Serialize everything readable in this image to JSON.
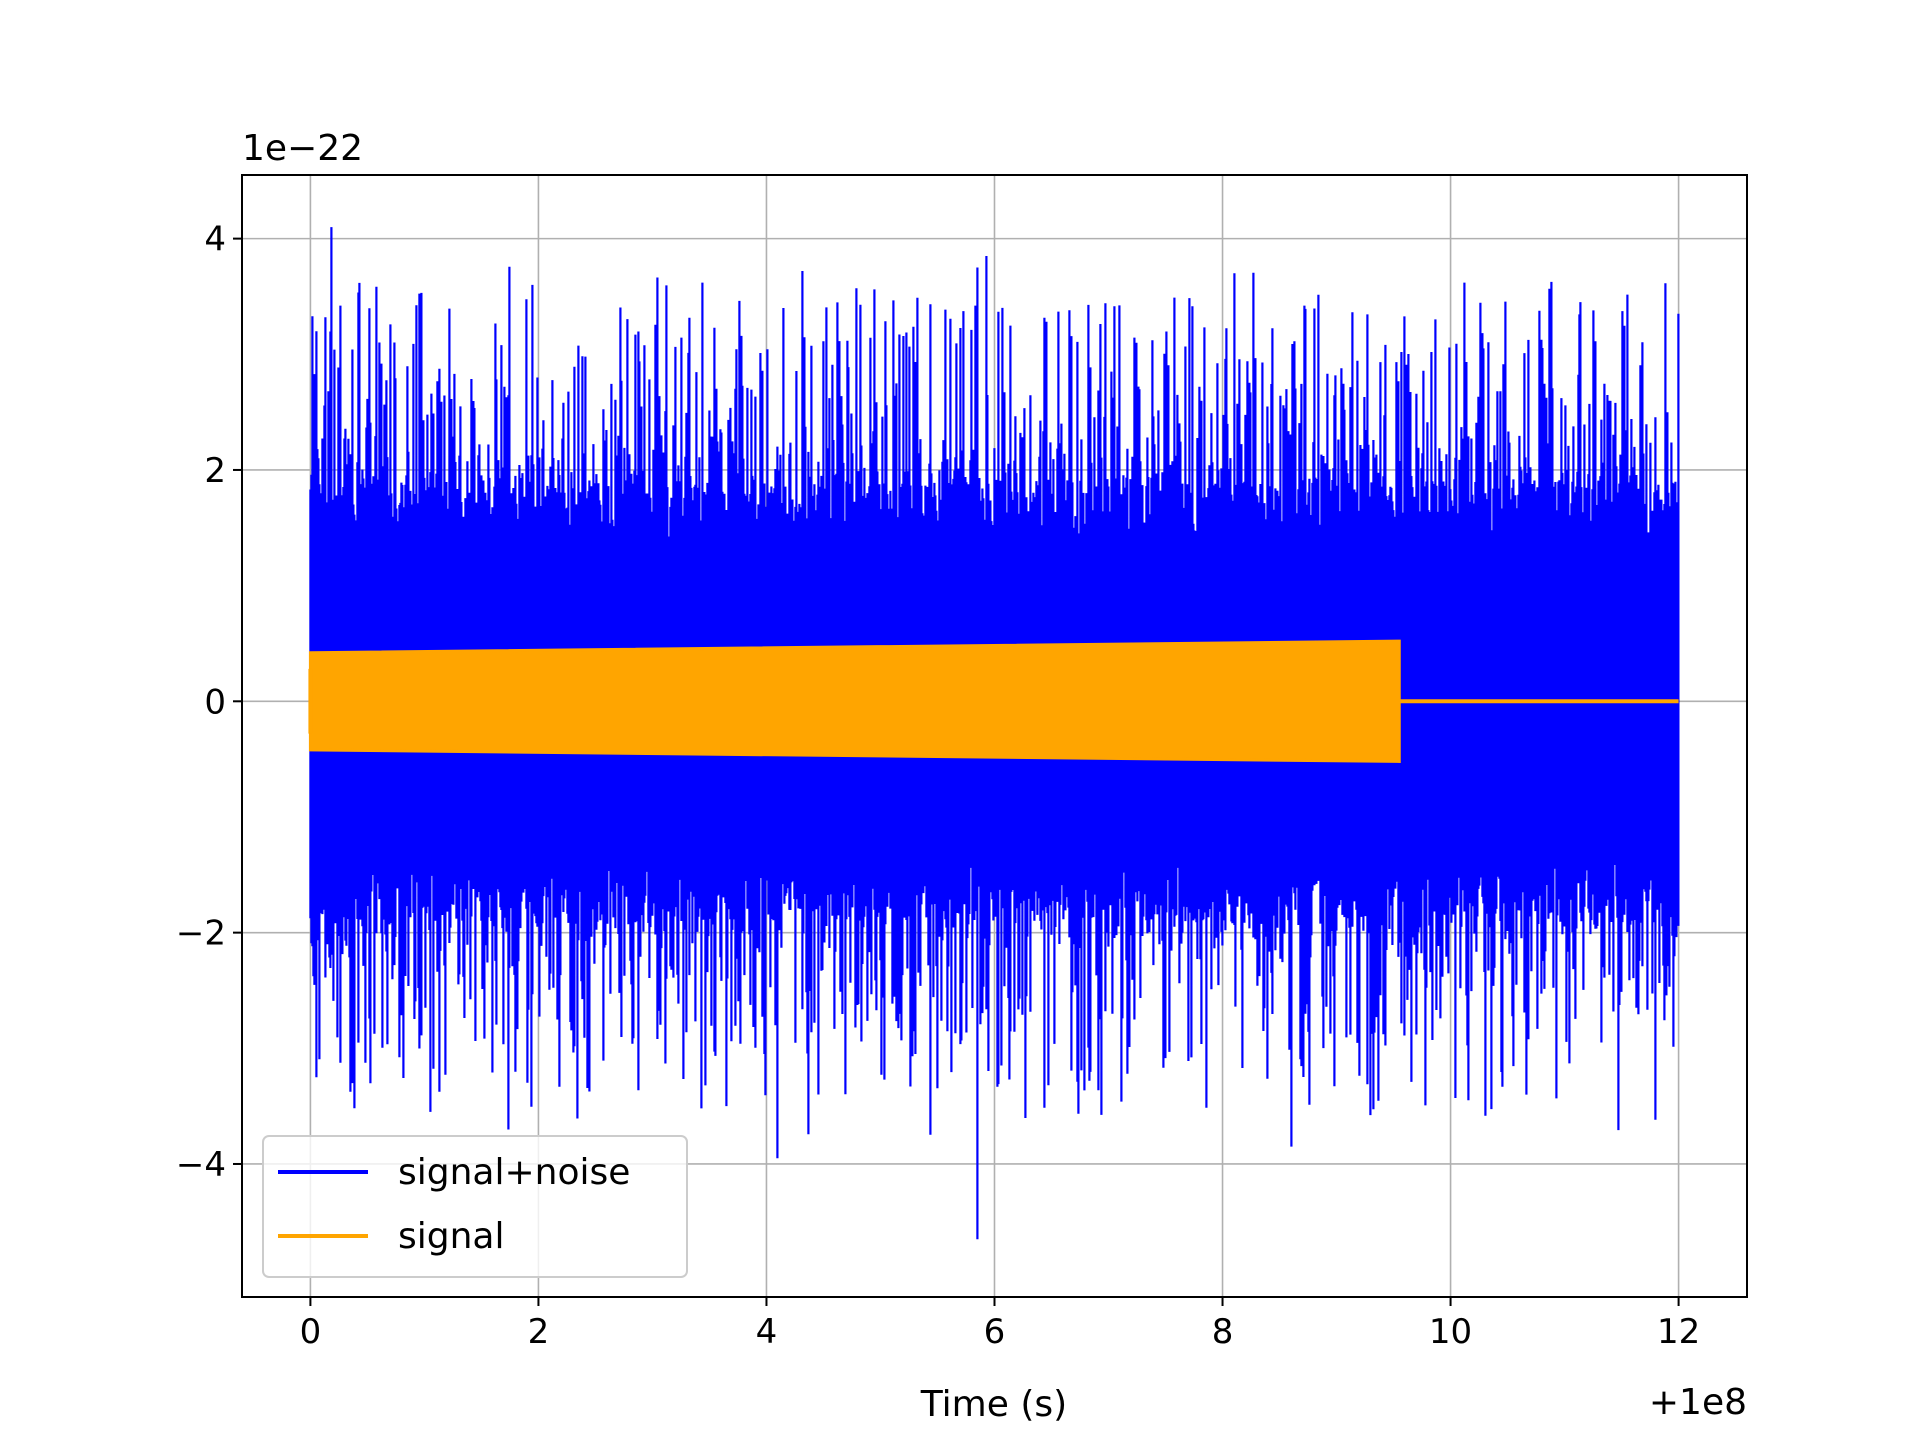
{
  "chart_data": {
    "type": "line",
    "title": "",
    "xlabel": "Time (s)",
    "ylabel": "",
    "x_offset_label": "+1e8",
    "y_offset_label": "1e−22",
    "xlim": [
      -0.6,
      12.6
    ],
    "ylim": [
      -5.15,
      4.55
    ],
    "x_ticks": [
      {
        "value": 0,
        "label": "0"
      },
      {
        "value": 2,
        "label": "2"
      },
      {
        "value": 4,
        "label": "4"
      },
      {
        "value": 6,
        "label": "6"
      },
      {
        "value": 8,
        "label": "8"
      },
      {
        "value": 10,
        "label": "10"
      },
      {
        "value": 12,
        "label": "12"
      }
    ],
    "y_ticks": [
      {
        "value": -4,
        "label": "−4"
      },
      {
        "value": -2,
        "label": "−2"
      },
      {
        "value": 0,
        "label": "0"
      },
      {
        "value": 2,
        "label": "2"
      },
      {
        "value": 4,
        "label": "4"
      }
    ],
    "grid": true,
    "legend_position": "lower-left",
    "series": [
      {
        "name": "signal+noise",
        "color": "#0000ff",
        "x_range": [
          0,
          12
        ],
        "band_min": [
          -1.4,
          1.4
        ],
        "peaks": [
          {
            "x": 0.18,
            "y": 4.1
          },
          {
            "x": 0.05,
            "y": 3.2
          },
          {
            "x": 1.95,
            "y": 3.6
          },
          {
            "x": 4.15,
            "y": 3.4
          },
          {
            "x": 5.85,
            "y": 3.75
          },
          {
            "x": 5.93,
            "y": 3.85
          },
          {
            "x": 8.1,
            "y": 3.7
          },
          {
            "x": 12.0,
            "y": 3.35
          },
          {
            "x": 0.05,
            "y": -3.25
          },
          {
            "x": 1.05,
            "y": -3.55
          },
          {
            "x": 3.65,
            "y": -3.5
          },
          {
            "x": 4.1,
            "y": -3.95
          },
          {
            "x": 5.85,
            "y": -4.65
          },
          {
            "x": 8.6,
            "y": -3.85
          },
          {
            "x": 11.8,
            "y": -3.35
          }
        ]
      },
      {
        "name": "signal",
        "color": "#ffa500",
        "x_range": [
          0,
          9.55
        ],
        "envelope_start": 0.42,
        "envelope_end": 0.52,
        "after_end_value": 0
      }
    ]
  }
}
